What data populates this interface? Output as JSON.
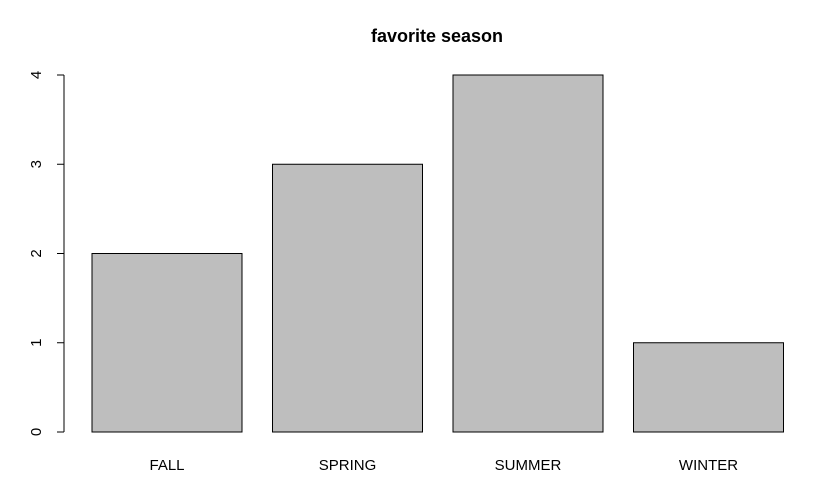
{
  "chart_data": {
    "type": "bar",
    "title": "favorite season",
    "categories": [
      "FALL",
      "SPRING",
      "SUMMER",
      "WINTER"
    ],
    "values": [
      2,
      3,
      4,
      1
    ],
    "color": "#bebebe",
    "ylim": [
      0,
      4
    ],
    "yticks": [
      0,
      1,
      2,
      3,
      4
    ]
  }
}
